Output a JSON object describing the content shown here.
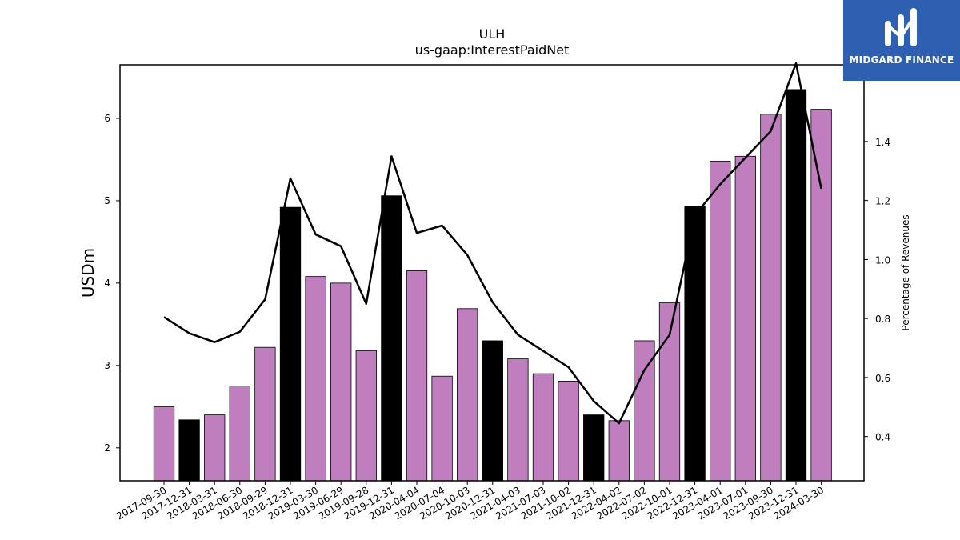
{
  "chart_data": {
    "type": "bar",
    "title": "ULH",
    "subtitle": "us-gaap:InterestPaidNet",
    "ylabel": "USDm",
    "ylabel_right": "Percentage of Revenues",
    "categories": [
      "2017-09-30",
      "2017-12-31",
      "2018-03-31",
      "2018-06-30",
      "2018-09-29",
      "2018-12-31",
      "2019-03-30",
      "2019-06-29",
      "2019-09-28",
      "2019-12-31",
      "2020-04-04",
      "2020-07-04",
      "2020-10-03",
      "2020-12-31",
      "2021-04-03",
      "2021-07-03",
      "2021-10-02",
      "2021-12-31",
      "2022-04-02",
      "2022-07-02",
      "2022-10-01",
      "2022-12-31",
      "2023-04-01",
      "2023-07-01",
      "2023-09-30",
      "2023-12-31",
      "2024-03-30"
    ],
    "series": [
      {
        "type": "bar",
        "values": [
          2.5,
          2.34,
          2.4,
          2.75,
          3.22,
          4.92,
          4.08,
          4.0,
          3.18,
          5.06,
          4.15,
          2.87,
          3.69,
          3.3,
          3.08,
          2.9,
          2.81,
          2.4,
          2.33,
          3.3,
          3.76,
          4.93,
          5.48,
          5.54,
          6.05,
          6.35,
          6.11
        ],
        "highlight": [
          false,
          true,
          false,
          false,
          false,
          true,
          false,
          false,
          false,
          true,
          false,
          false,
          false,
          true,
          false,
          false,
          false,
          true,
          false,
          false,
          false,
          true,
          false,
          false,
          false,
          true,
          false
        ],
        "axis": "left"
      },
      {
        "type": "line",
        "values": [
          0.805,
          0.75,
          0.72,
          0.755,
          0.865,
          1.275,
          1.085,
          1.045,
          0.85,
          1.35,
          1.09,
          1.115,
          1.015,
          0.855,
          0.745,
          0.69,
          0.635,
          0.52,
          0.445,
          0.625,
          0.745,
          1.15,
          1.255,
          1.345,
          1.435,
          1.665,
          1.24
        ],
        "axis": "right"
      }
    ],
    "ylim": [
      1.6,
      6.65
    ],
    "ylim_right": [
      0.25,
      1.66
    ],
    "yticks": [
      2,
      3,
      4,
      5,
      6
    ],
    "yticks_right": [
      0.4,
      0.6,
      0.8,
      1.0,
      1.2,
      1.4
    ],
    "colors": {
      "bar": "#bf7fbf",
      "bar_highlight": "#000000",
      "line": "#000000",
      "edge": "#000000"
    },
    "grid": false
  },
  "logo": {
    "text": "MIDGARD FINANCE",
    "color": "#2f5fb0"
  }
}
